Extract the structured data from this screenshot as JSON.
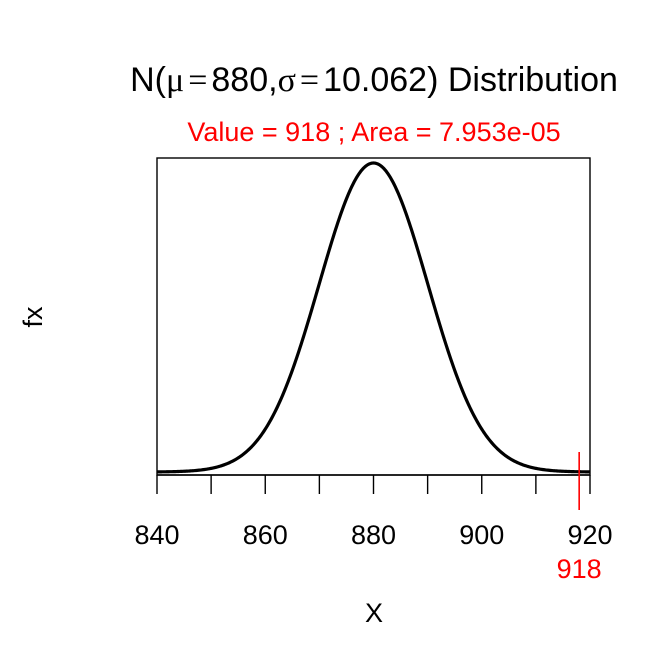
{
  "chart_data": {
    "type": "line",
    "title": {
      "prefix": "N(",
      "mu_symbol": "μ",
      "eq": "=",
      "mu_value": "880",
      "comma": ",",
      "sigma_symbol": "σ",
      "sigma_value": "10.062",
      "suffix": ") Distribution"
    },
    "subtitle": "Value = 918 ; Area = 7.953e-05",
    "xlabel": "X",
    "ylabel": "fx",
    "mean": 880,
    "sd": 10.062,
    "xlim": [
      840,
      920
    ],
    "x_ticks_major": [
      840,
      860,
      880,
      900,
      920
    ],
    "x_tick_labels": [
      "840",
      "860",
      "880",
      "900",
      "920"
    ],
    "x_ticks_minor": [
      850,
      870,
      890,
      910
    ],
    "marker": {
      "value": 918,
      "label": "918"
    },
    "colors": {
      "curve": "#000000",
      "highlight": "#ff0000",
      "axis": "#000000"
    }
  }
}
